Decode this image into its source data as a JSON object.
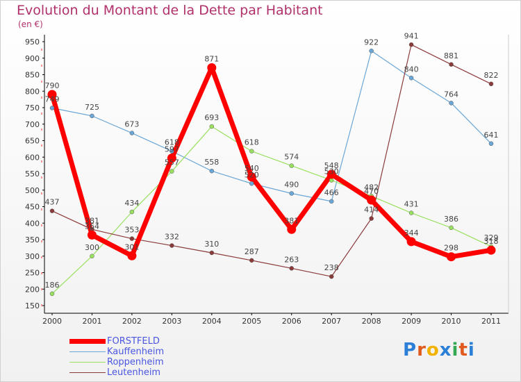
{
  "title": "Evolution du Montant de la Dette par Habitant",
  "subtitle": "(en €)",
  "logo": {
    "letters": [
      "P",
      "r",
      "o",
      "x",
      "i",
      "t",
      "i"
    ],
    "colors": [
      "#2b7fd6",
      "#e05a1e",
      "#f2b200",
      "#2b7fd6",
      "#34a853",
      "#e05a1e",
      "#2b7fd6"
    ]
  },
  "chart_data": {
    "type": "line",
    "title": "Evolution du Montant de la Dette par Habitant",
    "subtitle": "(en €)",
    "categories": [
      "2000",
      "2001",
      "2002",
      "2003",
      "2004",
      "2005",
      "2006",
      "2007",
      "2008",
      "2009",
      "2010",
      "2011"
    ],
    "ylim": [
      150,
      950
    ],
    "yticks": [
      150,
      200,
      250,
      300,
      350,
      400,
      450,
      500,
      550,
      600,
      650,
      700,
      750,
      800,
      850,
      900,
      950
    ],
    "grid": false,
    "legend_position": "bottom-left",
    "series": [
      {
        "name": "FORSTFELD",
        "color": "#ff0000",
        "values": [
          790,
          364,
          301,
          597,
          871,
          540,
          381,
          548,
          470,
          344,
          298,
          318
        ]
      },
      {
        "name": "Kauffenheim",
        "color": "#6aa6d6",
        "values": [
          749,
          725,
          673,
          618,
          558,
          520,
          490,
          466,
          922,
          840,
          764,
          641
        ]
      },
      {
        "name": "Roppenheim",
        "color": "#99e060",
        "values": [
          186,
          300,
          434,
          557,
          693,
          618,
          574,
          530,
          482,
          431,
          386,
          329
        ]
      },
      {
        "name": "Leutenheim",
        "color": "#8b3a3a",
        "values": [
          437,
          381,
          353,
          332,
          310,
          287,
          263,
          238,
          414,
          941,
          881,
          822
        ]
      }
    ]
  }
}
